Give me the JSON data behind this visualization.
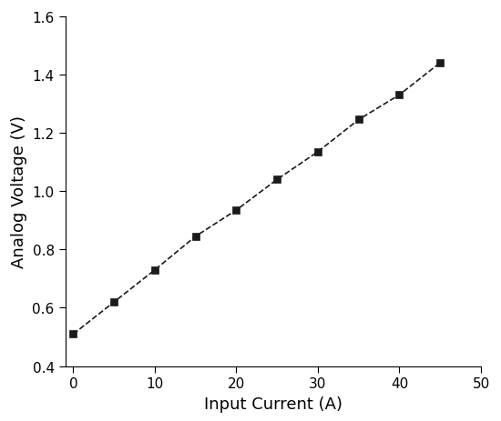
{
  "x": [
    0,
    5,
    10,
    15,
    20,
    25,
    30,
    35,
    40,
    45
  ],
  "y": [
    0.51,
    0.62,
    0.73,
    0.845,
    0.935,
    1.04,
    1.135,
    1.245,
    1.33,
    1.44
  ],
  "xlabel": "Input Current (A)",
  "ylabel": "Analog Voltage (V)",
  "xlim": [
    -1,
    50
  ],
  "ylim": [
    0.4,
    1.6
  ],
  "xticks": [
    0,
    10,
    20,
    30,
    40,
    50
  ],
  "yticks": [
    0.4,
    0.6,
    0.8,
    1.0,
    1.2,
    1.4,
    1.6
  ],
  "line_color": "#1a1a1a",
  "marker": "s",
  "marker_size": 6,
  "line_style": "--",
  "line_width": 1.2,
  "background_color": "#ffffff",
  "xlabel_fontsize": 13,
  "ylabel_fontsize": 13,
  "tick_fontsize": 11
}
